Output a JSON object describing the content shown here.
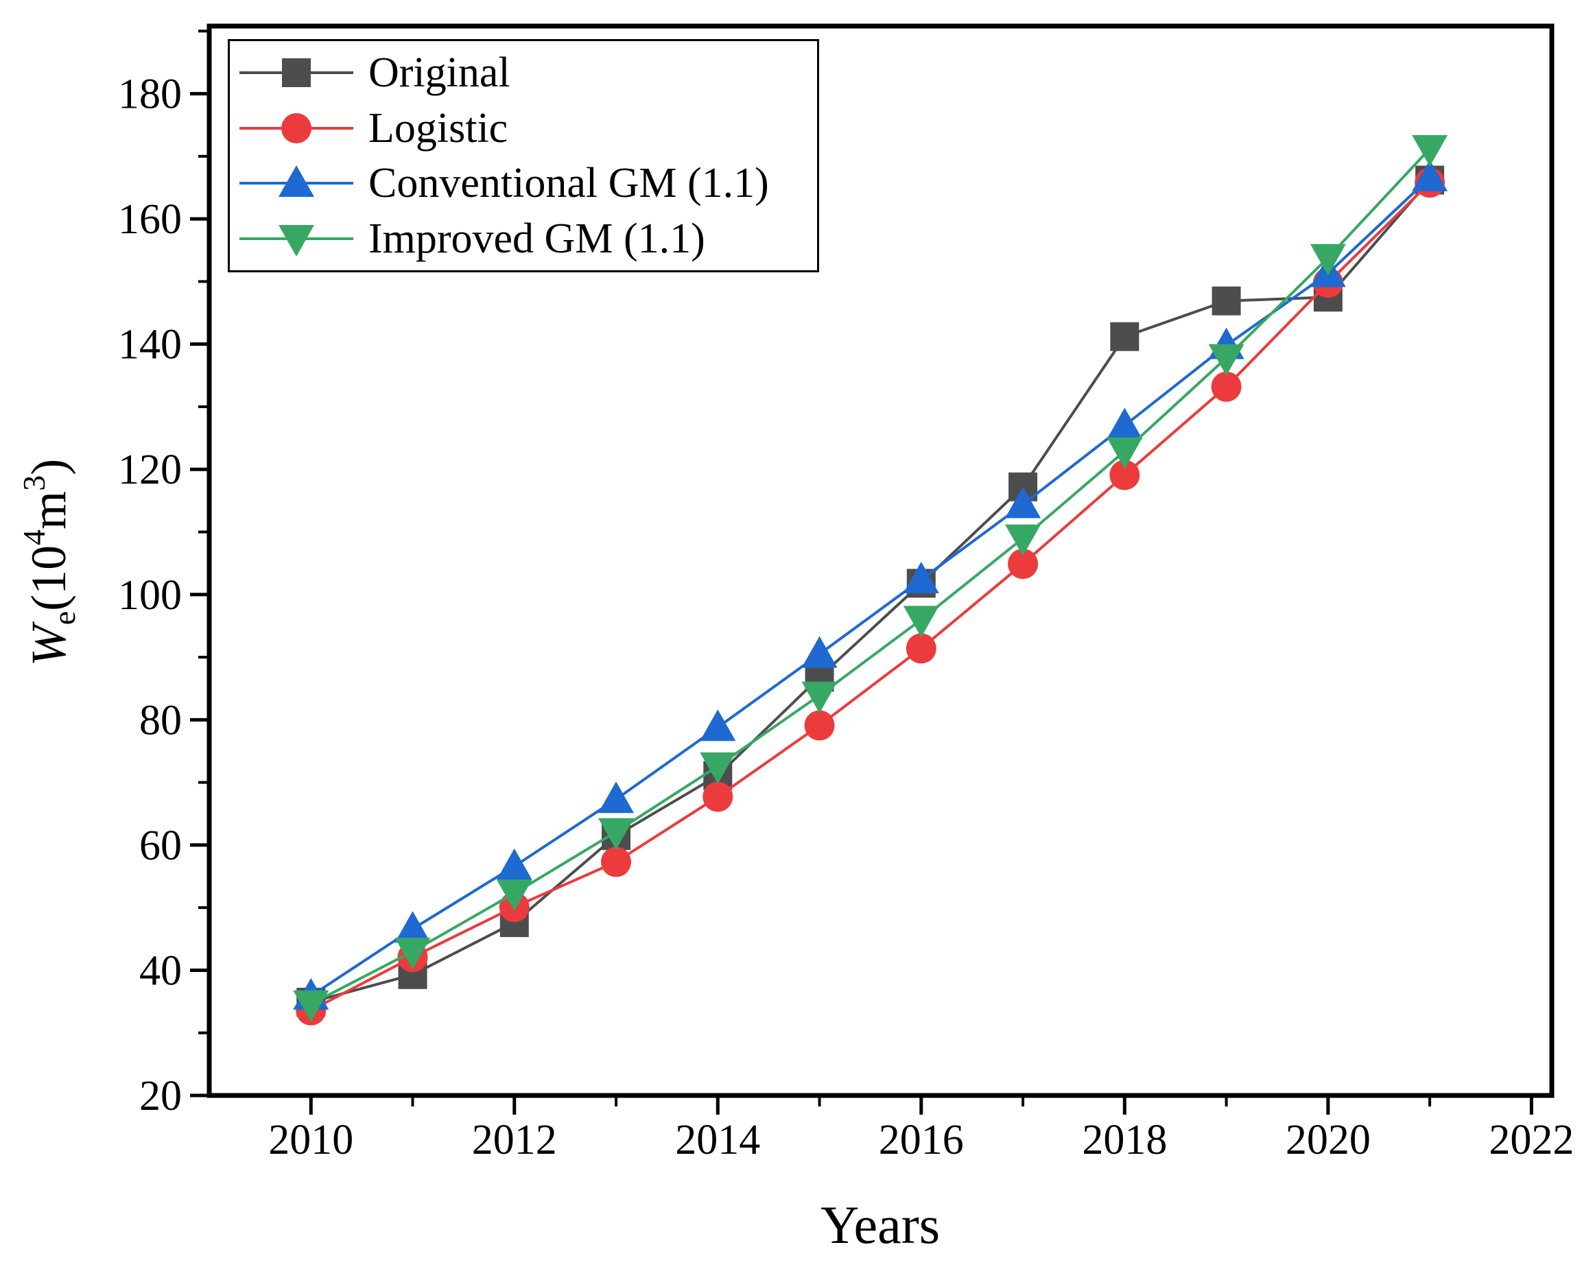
{
  "chart_data": {
    "type": "line",
    "title": "",
    "xlabel": "Years",
    "ylabel": "We(10^4 m^3)",
    "ylabel_parts": [
      "W",
      "e",
      "(10",
      "4",
      "m",
      "3",
      ")"
    ],
    "x": [
      2010,
      2011,
      2012,
      2013,
      2014,
      2015,
      2016,
      2017,
      2018,
      2019,
      2020,
      2021
    ],
    "series": [
      {
        "name": "Original",
        "marker": "square",
        "color": "#4D4D4D",
        "values": [
          34.9,
          39.3,
          47.6,
          61.5,
          71.1,
          86.8,
          101.8,
          117.2,
          141.2,
          146.9,
          147.5,
          166.2
        ]
      },
      {
        "name": "Logistic",
        "marker": "circle",
        "color": "#EB3B3C",
        "values": [
          33.6,
          42.1,
          50.1,
          57.3,
          67.7,
          79.1,
          91.4,
          104.9,
          119.1,
          133.2,
          149.8,
          165.8
        ]
      },
      {
        "name": "Conventional GM (1.1)",
        "marker": "triangle-up",
        "color": "#1E69D2",
        "values": [
          35.9,
          46.6,
          56.6,
          67.3,
          78.8,
          90.5,
          102.4,
          114.4,
          127.0,
          139.8,
          151.3,
          166.6
        ]
      },
      {
        "name": "Improved GM (1.1)",
        "marker": "triangle-down",
        "color": "#37A864",
        "values": [
          34.6,
          43.0,
          52.3,
          62.1,
          72.6,
          83.9,
          96.0,
          109.0,
          122.9,
          137.8,
          153.8,
          171.2
        ]
      }
    ],
    "xlim": [
      2009.0,
      2022.2
    ],
    "ylim": [
      20,
      190.8
    ],
    "xticks": [
      2010,
      2012,
      2014,
      2016,
      2018,
      2020,
      2022
    ],
    "yticks": [
      20,
      40,
      60,
      80,
      100,
      120,
      140,
      160,
      180
    ],
    "x_minor_ticks": [
      2011,
      2013,
      2015,
      2017,
      2019,
      2021
    ],
    "y_minor_ticks": [
      30,
      50,
      70,
      90,
      110,
      130,
      150,
      170,
      190
    ],
    "grid": false,
    "legend_position": "top-left"
  }
}
